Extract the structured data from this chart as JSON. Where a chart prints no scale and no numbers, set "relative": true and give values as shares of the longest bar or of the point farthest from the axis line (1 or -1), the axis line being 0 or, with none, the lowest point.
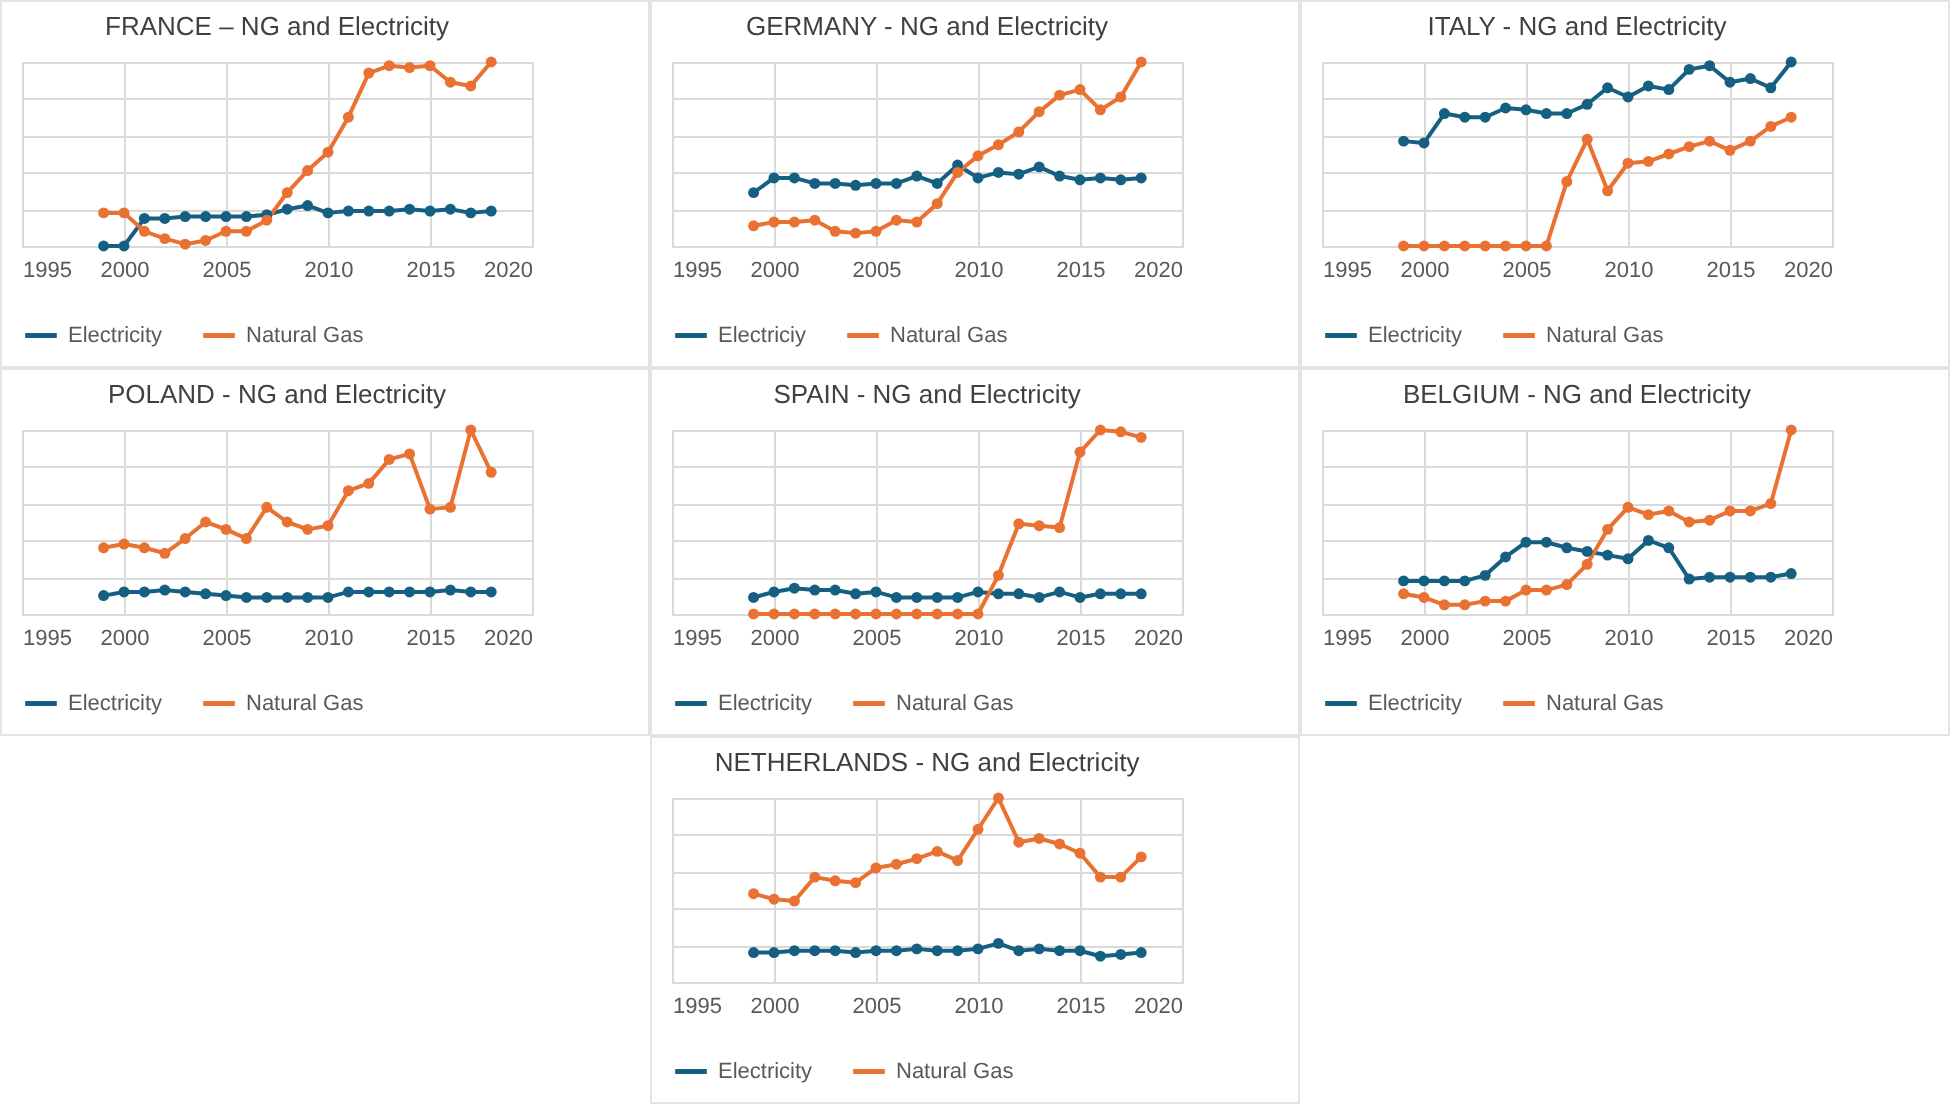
{
  "chart_data": [
    {
      "type": "line",
      "title": "FRANCE – NG and Electricity",
      "relative": true,
      "grid": true,
      "legend": "bottom",
      "marker": "circle",
      "xlim": [
        1995,
        2020
      ],
      "xticks": [
        1995,
        2000,
        2005,
        2010,
        2015,
        2020
      ],
      "x": [
        1999,
        2000,
        2001,
        2002,
        2003,
        2004,
        2005,
        2006,
        2007,
        2008,
        2009,
        2010,
        2011,
        2012,
        2013,
        2014,
        2015,
        2016,
        2017,
        2018
      ],
      "series": [
        {
          "name": "Electricity",
          "color": "#156082",
          "values": [
            0,
            0,
            0.15,
            0.15,
            0.16,
            0.16,
            0.16,
            0.16,
            0.17,
            0.2,
            0.22,
            0.18,
            0.19,
            0.19,
            0.19,
            0.2,
            0.19,
            0.2,
            0.18,
            0.19
          ]
        },
        {
          "name": "Natural Gas",
          "color": "#e97132",
          "values": [
            0.18,
            0.18,
            0.08,
            0.04,
            0.01,
            0.03,
            0.08,
            0.08,
            0.14,
            0.29,
            0.41,
            0.51,
            0.7,
            0.94,
            0.98,
            0.97,
            0.98,
            0.89,
            0.87,
            1
          ]
        }
      ]
    },
    {
      "type": "line",
      "title": "GERMANY - NG and Electricity",
      "relative": true,
      "grid": true,
      "legend": "bottom",
      "marker": "circle",
      "xlim": [
        1995,
        2020
      ],
      "xticks": [
        1995,
        2000,
        2005,
        2010,
        2015,
        2020
      ],
      "x": [
        1999,
        2000,
        2001,
        2002,
        2003,
        2004,
        2005,
        2006,
        2007,
        2008,
        2009,
        2010,
        2011,
        2012,
        2013,
        2014,
        2015,
        2016,
        2017,
        2018
      ],
      "series": [
        {
          "name": "Electriciy",
          "color": "#156082",
          "values": [
            0.29,
            0.37,
            0.37,
            0.34,
            0.34,
            0.33,
            0.34,
            0.34,
            0.38,
            0.34,
            0.44,
            0.37,
            0.4,
            0.39,
            0.43,
            0.38,
            0.36,
            0.37,
            0.36,
            0.37
          ]
        },
        {
          "name": "Natural Gas",
          "color": "#e97132",
          "values": [
            0.11,
            0.13,
            0.13,
            0.14,
            0.08,
            0.07,
            0.08,
            0.14,
            0.13,
            0.23,
            0.4,
            0.49,
            0.55,
            0.62,
            0.73,
            0.82,
            0.85,
            0.74,
            0.81,
            1
          ]
        }
      ]
    },
    {
      "type": "line",
      "title": "ITALY - NG and Electricity",
      "relative": true,
      "grid": true,
      "legend": "bottom",
      "marker": "circle",
      "xlim": [
        1995,
        2020
      ],
      "xticks": [
        1995,
        2000,
        2005,
        2010,
        2015,
        2020
      ],
      "x": [
        1999,
        2000,
        2001,
        2002,
        2003,
        2004,
        2005,
        2006,
        2007,
        2008,
        2009,
        2010,
        2011,
        2012,
        2013,
        2014,
        2015,
        2016,
        2017,
        2018
      ],
      "series": [
        {
          "name": "Electricity",
          "color": "#156082",
          "values": [
            0.57,
            0.56,
            0.72,
            0.7,
            0.7,
            0.75,
            0.74,
            0.72,
            0.72,
            0.77,
            0.86,
            0.81,
            0.87,
            0.85,
            0.96,
            0.98,
            0.89,
            0.91,
            0.86,
            1
          ]
        },
        {
          "name": "Natural Gas",
          "color": "#e97132",
          "values": [
            0,
            0,
            0,
            0,
            0,
            0,
            0,
            0,
            0.35,
            0.58,
            0.3,
            0.45,
            0.46,
            0.5,
            0.54,
            0.57,
            0.52,
            0.57,
            0.65,
            0.7
          ]
        }
      ]
    },
    {
      "type": "line",
      "title": "POLAND - NG and Electricity",
      "relative": true,
      "grid": true,
      "legend": "bottom",
      "marker": "circle",
      "xlim": [
        1995,
        2020
      ],
      "xticks": [
        1995,
        2000,
        2005,
        2010,
        2015,
        2020
      ],
      "x": [
        1999,
        2000,
        2001,
        2002,
        2003,
        2004,
        2005,
        2006,
        2007,
        2008,
        2009,
        2010,
        2011,
        2012,
        2013,
        2014,
        2015,
        2016,
        2017,
        2018
      ],
      "series": [
        {
          "name": "Electricity",
          "color": "#156082",
          "values": [
            0.1,
            0.12,
            0.12,
            0.13,
            0.12,
            0.11,
            0.1,
            0.09,
            0.09,
            0.09,
            0.09,
            0.09,
            0.12,
            0.12,
            0.12,
            0.12,
            0.12,
            0.13,
            0.12,
            0.12
          ]
        },
        {
          "name": "Natural Gas",
          "color": "#e97132",
          "values": [
            0.36,
            0.38,
            0.36,
            0.33,
            0.41,
            0.5,
            0.46,
            0.41,
            0.58,
            0.5,
            0.46,
            0.48,
            0.67,
            0.71,
            0.84,
            0.87,
            0.57,
            0.58,
            1,
            0.77
          ]
        }
      ]
    },
    {
      "type": "line",
      "title": "SPAIN - NG and Electricity",
      "relative": true,
      "grid": true,
      "legend": "bottom",
      "marker": "circle",
      "xlim": [
        1995,
        2020
      ],
      "xticks": [
        1995,
        2000,
        2005,
        2010,
        2015,
        2020
      ],
      "x": [
        1999,
        2000,
        2001,
        2002,
        2003,
        2004,
        2005,
        2006,
        2007,
        2008,
        2009,
        2010,
        2011,
        2012,
        2013,
        2014,
        2015,
        2016,
        2017,
        2018
      ],
      "series": [
        {
          "name": "Electricity",
          "color": "#156082",
          "values": [
            0.09,
            0.12,
            0.14,
            0.13,
            0.13,
            0.11,
            0.12,
            0.09,
            0.09,
            0.09,
            0.09,
            0.12,
            0.11,
            0.11,
            0.09,
            0.12,
            0.09,
            0.11,
            0.11,
            0.11
          ]
        },
        {
          "name": "Natural Gas",
          "color": "#e97132",
          "values": [
            0,
            0,
            0,
            0,
            0,
            0,
            0,
            0,
            0,
            0,
            0,
            0,
            0.21,
            0.49,
            0.48,
            0.47,
            0.88,
            1,
            0.99,
            0.96
          ]
        }
      ]
    },
    {
      "type": "line",
      "title": "BELGIUM - NG and Electricity",
      "relative": true,
      "grid": true,
      "legend": "bottom",
      "marker": "circle",
      "xlim": [
        1995,
        2020
      ],
      "xticks": [
        1995,
        2000,
        2005,
        2010,
        2015,
        2020
      ],
      "x": [
        1999,
        2000,
        2001,
        2002,
        2003,
        2004,
        2005,
        2006,
        2007,
        2008,
        2009,
        2010,
        2011,
        2012,
        2013,
        2014,
        2015,
        2016,
        2017,
        2018
      ],
      "series": [
        {
          "name": "Electricity",
          "color": "#156082",
          "values": [
            0.18,
            0.18,
            0.18,
            0.18,
            0.21,
            0.31,
            0.39,
            0.39,
            0.36,
            0.34,
            0.32,
            0.3,
            0.4,
            0.36,
            0.19,
            0.2,
            0.2,
            0.2,
            0.2,
            0.22
          ]
        },
        {
          "name": "Natural Gas",
          "color": "#e97132",
          "values": [
            0.11,
            0.09,
            0.05,
            0.05,
            0.07,
            0.07,
            0.13,
            0.13,
            0.16,
            0.27,
            0.46,
            0.58,
            0.54,
            0.56,
            0.5,
            0.51,
            0.56,
            0.56,
            0.6,
            1
          ]
        }
      ]
    },
    {
      "type": "line",
      "title": "NETHERLANDS - NG and Electricity",
      "relative": true,
      "grid": true,
      "legend": "bottom",
      "marker": "circle",
      "xlim": [
        1995,
        2020
      ],
      "xticks": [
        1995,
        2000,
        2005,
        2010,
        2015,
        2020
      ],
      "x": [
        1999,
        2000,
        2001,
        2002,
        2003,
        2004,
        2005,
        2006,
        2007,
        2008,
        2009,
        2010,
        2011,
        2012,
        2013,
        2014,
        2015,
        2016,
        2017,
        2018
      ],
      "series": [
        {
          "name": "Electricity",
          "color": "#156082",
          "values": [
            0.16,
            0.16,
            0.17,
            0.17,
            0.17,
            0.16,
            0.17,
            0.17,
            0.18,
            0.17,
            0.17,
            0.18,
            0.21,
            0.17,
            0.18,
            0.17,
            0.17,
            0.14,
            0.15,
            0.16
          ]
        },
        {
          "name": "Natural Gas",
          "color": "#e97132",
          "values": [
            0.48,
            0.45,
            0.44,
            0.57,
            0.55,
            0.54,
            0.62,
            0.64,
            0.67,
            0.71,
            0.66,
            0.83,
            1,
            0.76,
            0.78,
            0.75,
            0.7,
            0.57,
            0.57,
            0.68
          ]
        }
      ]
    }
  ]
}
